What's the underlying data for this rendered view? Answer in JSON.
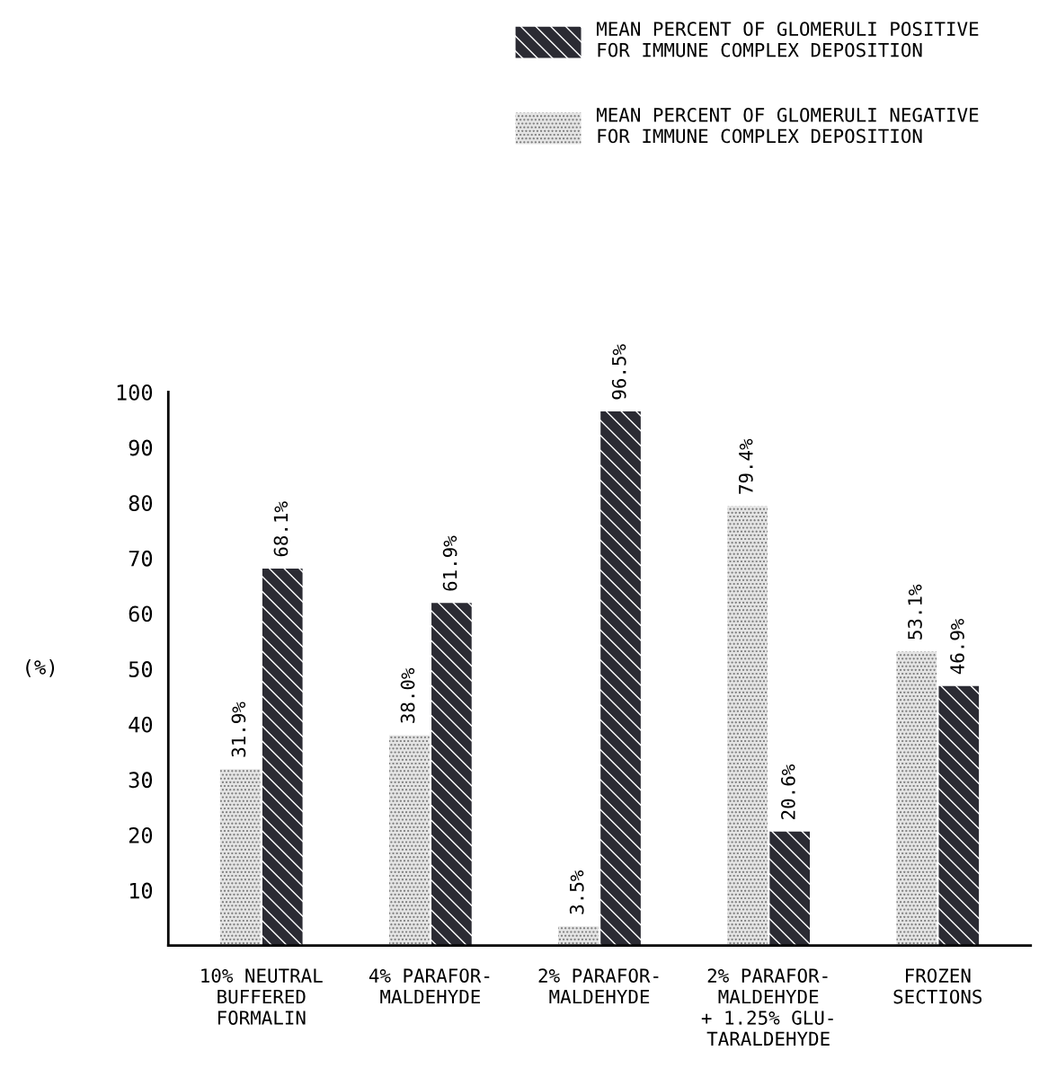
{
  "chart_data": {
    "type": "bar",
    "ylabel": "(%)",
    "categories": [
      "10% NEUTRAL\nBUFFERED\nFORMALIN",
      "4% PARAFOR-\nMALDEHYDE",
      "2% PARAFOR-\nMALDEHYDE",
      "2% PARAFOR-\nMALDEHYDE\n+ 1.25% GLU-\nTARALDEHYDE",
      "FROZEN\nSECTIONS"
    ],
    "series": [
      {
        "name": "MEAN PERCENT OF GLOMERULI NEGATIVE\nFOR IMMUNE COMPLEX DEPOSITION",
        "color": "#e4e4e4",
        "values": [
          31.9,
          38.0,
          3.5,
          79.4,
          53.1
        ],
        "value_labels": [
          "31.9%",
          "38.0%",
          "3.5%",
          "79.4%",
          "53.1%"
        ]
      },
      {
        "name": "MEAN PERCENT OF GLOMERULI POSITIVE\nFOR IMMUNE COMPLEX DEPOSITION",
        "color": "#2b2b33",
        "values": [
          68.1,
          61.9,
          96.5,
          20.6,
          46.9
        ],
        "value_labels": [
          "68.1%",
          "61.9%",
          "96.5%",
          "20.6%",
          "46.9%"
        ]
      }
    ],
    "ylim": [
      0,
      100
    ],
    "yticks": [
      10,
      20,
      30,
      40,
      50,
      60,
      70,
      80,
      90,
      100
    ],
    "grid": false,
    "legend": "top right"
  }
}
